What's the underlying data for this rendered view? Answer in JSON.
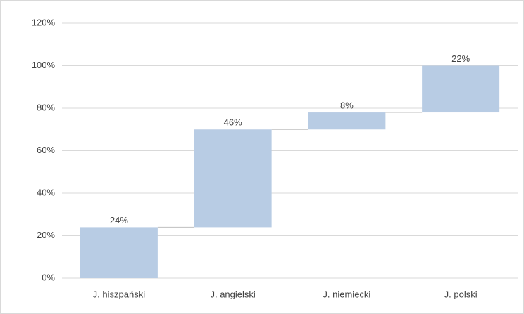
{
  "chart_data": {
    "type": "waterfall",
    "categories": [
      "J. hiszpański",
      "J. angielski",
      "J. niemiecki",
      "J. polski"
    ],
    "values": [
      24,
      46,
      8,
      22
    ],
    "value_labels": [
      "24%",
      "46%",
      "8%",
      "22%"
    ],
    "color": "#b8cce4",
    "ylim": [
      0,
      120
    ],
    "yticks": [
      {
        "value": 0,
        "label": "0%"
      },
      {
        "value": 20,
        "label": "20%"
      },
      {
        "value": 40,
        "label": "40%"
      },
      {
        "value": 60,
        "label": "60%"
      },
      {
        "value": 80,
        "label": "80%"
      },
      {
        "value": 100,
        "label": "100%"
      },
      {
        "value": 120,
        "label": "120%"
      }
    ],
    "grid": true
  }
}
